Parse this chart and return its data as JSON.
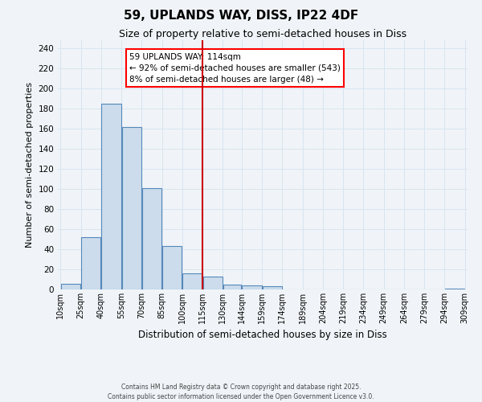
{
  "title": "59, UPLANDS WAY, DISS, IP22 4DF",
  "subtitle": "Size of property relative to semi-detached houses in Diss",
  "xlabel": "Distribution of semi-detached houses by size in Diss",
  "ylabel": "Number of semi-detached properties",
  "bar_edges": [
    10,
    25,
    40,
    55,
    70,
    85,
    100,
    115,
    130,
    144,
    159,
    174,
    189,
    204,
    219,
    234,
    249,
    264,
    279,
    294,
    309
  ],
  "bar_heights": [
    6,
    52,
    185,
    162,
    101,
    43,
    16,
    13,
    5,
    4,
    3,
    0,
    0,
    0,
    0,
    0,
    0,
    0,
    0,
    1
  ],
  "bar_color": "#ccdcec",
  "bar_edgecolor": "#5588bb",
  "grid_color": "#d8e4f0",
  "vline_x": 115,
  "vline_color": "#cc0000",
  "ylim": [
    0,
    248
  ],
  "yticks": [
    0,
    20,
    40,
    60,
    80,
    100,
    120,
    140,
    160,
    180,
    200,
    220,
    240
  ],
  "annotation_title": "59 UPLANDS WAY: 114sqm",
  "annotation_line1": "← 92% of semi-detached houses are smaller (543)",
  "annotation_line2": "8% of semi-detached houses are larger (48) →",
  "footer_line1": "Contains HM Land Registry data © Crown copyright and database right 2025.",
  "footer_line2": "Contains public sector information licensed under the Open Government Licence v3.0.",
  "tick_labels": [
    "10sqm",
    "25sqm",
    "40sqm",
    "55sqm",
    "70sqm",
    "85sqm",
    "100sqm",
    "115sqm",
    "130sqm",
    "144sqm",
    "159sqm",
    "174sqm",
    "189sqm",
    "204sqm",
    "219sqm",
    "234sqm",
    "249sqm",
    "264sqm",
    "279sqm",
    "294sqm",
    "309sqm"
  ],
  "background_color": "#f0f4f8"
}
